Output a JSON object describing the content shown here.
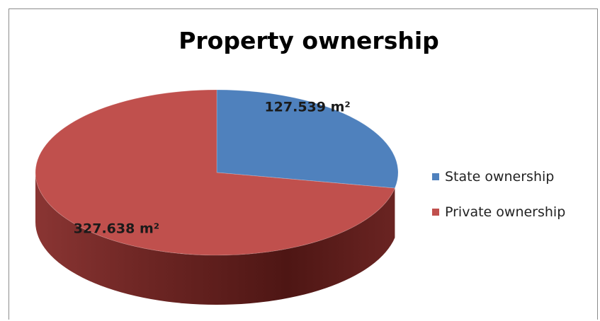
{
  "chart_data": {
    "type": "pie",
    "title": "Property ownership",
    "slices": [
      {
        "label": "State ownership",
        "value": 127.539,
        "data_label": "127.539 m²",
        "color": "#4f81bd"
      },
      {
        "label": "Private ownership",
        "value": 327.638,
        "data_label": "327.638 m²",
        "color": "#c0504d"
      }
    ],
    "style": "3d",
    "legend_position": "right"
  }
}
